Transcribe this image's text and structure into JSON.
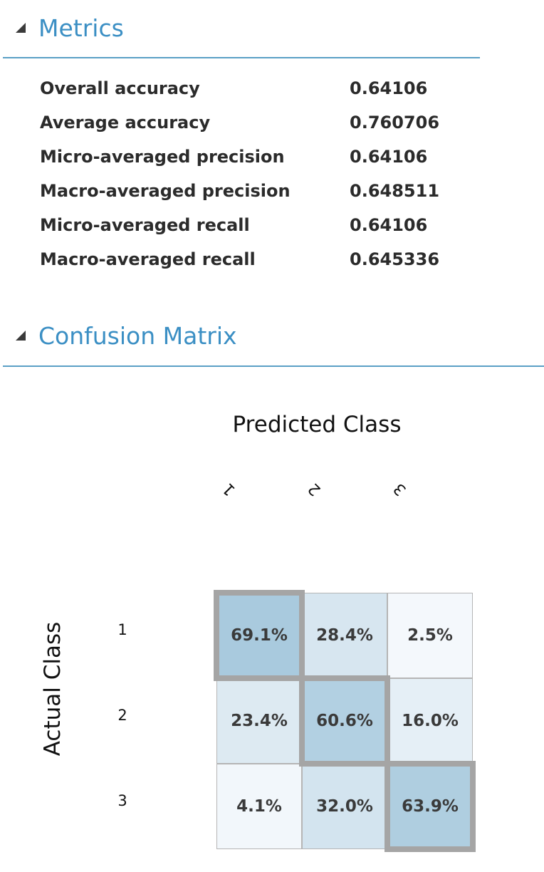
{
  "metrics_section": {
    "title": "Metrics",
    "icon": "collapse-triangle-icon",
    "rows": [
      {
        "name": "Overall accuracy",
        "value": "0.64106"
      },
      {
        "name": "Average accuracy",
        "value": "0.760706"
      },
      {
        "name": "Micro-averaged precision",
        "value": "0.64106"
      },
      {
        "name": "Macro-averaged precision",
        "value": "0.648511"
      },
      {
        "name": "Micro-averaged recall",
        "value": "0.64106"
      },
      {
        "name": "Macro-averaged recall",
        "value": "0.645336"
      }
    ]
  },
  "confusion_section": {
    "title": "Confusion Matrix",
    "icon": "collapse-triangle-icon",
    "predicted_label": "Predicted Class",
    "actual_label": "Actual Class",
    "classes": [
      "1",
      "2",
      "3"
    ],
    "cells": [
      [
        "69.1%",
        "28.4%",
        "2.5%"
      ],
      [
        "23.4%",
        "60.6%",
        "16.0%"
      ],
      [
        "4.1%",
        "32.0%",
        "63.9%"
      ]
    ],
    "cell_values": [
      [
        0.691,
        0.284,
        0.025
      ],
      [
        0.234,
        0.606,
        0.16
      ],
      [
        0.041,
        0.32,
        0.639
      ]
    ]
  },
  "colors": {
    "accent": "#3b8fc4",
    "divider": "#5aa0c6",
    "heat_high": "#a9cade",
    "heat_low": "#f7fafd",
    "diag_border": "#a5a5a5"
  }
}
